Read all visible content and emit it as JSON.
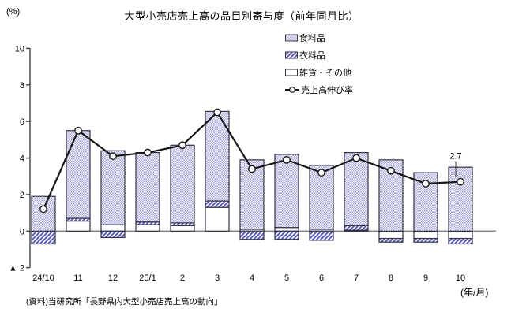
{
  "title": "大型小売店売上高の品目別寄与度（前年同月比）",
  "source_note": "(資料)当研究所「長野県内大型小売店売上高の動向」",
  "chart_data": {
    "type": "bar",
    "subtype": "stacked-bar-with-line",
    "title": "大型小売店売上高の品目別寄与度（前年同月比）",
    "unit_label": "(%)",
    "xaxis_label": "(年/月)",
    "categories": [
      "24/10",
      "11",
      "12",
      "25/1",
      "2",
      "3",
      "4",
      "5",
      "6",
      "7",
      "8",
      "9",
      "10"
    ],
    "bar_series": [
      {
        "name": "食料品",
        "pattern": "dots",
        "values": [
          1.9,
          4.8,
          4.05,
          3.8,
          4.25,
          4.9,
          3.8,
          4.0,
          3.5,
          4.0,
          3.9,
          3.2,
          3.5
        ]
      },
      {
        "name": "衣料品",
        "pattern": "stripes",
        "values": [
          -0.7,
          0.15,
          -0.35,
          0.15,
          0.15,
          0.35,
          -0.45,
          -0.45,
          -0.5,
          0.25,
          -0.2,
          -0.2,
          -0.3
        ]
      },
      {
        "name": "雑貨・その他",
        "pattern": "white",
        "values": [
          0,
          0.55,
          0.35,
          0.35,
          0.3,
          1.3,
          0.1,
          0.2,
          0.1,
          0.05,
          -0.4,
          -0.4,
          -0.4
        ]
      }
    ],
    "line_series": {
      "name": "売上高伸び率",
      "values": [
        1.2,
        5.5,
        4.1,
        4.3,
        4.7,
        6.5,
        3.4,
        3.9,
        3.2,
        4.0,
        3.3,
        2.6,
        2.7
      ]
    },
    "ylim": [
      -2,
      10
    ],
    "yticks": [
      10,
      8,
      6,
      4,
      2,
      0,
      -2
    ],
    "ytick_labels": [
      "10",
      "8",
      "6",
      "4",
      "2",
      "0",
      "▲ 2"
    ],
    "grid": false,
    "legend_position": "upper-right-inside",
    "annotation": {
      "index": 12,
      "text": "2.7"
    },
    "colors": {
      "dots_fill": "#a2a2da",
      "stripes_fill": "#5d5dbd",
      "segment_border": "#333344",
      "line": "#161616",
      "zero_line": "#8a8a8a",
      "axis": "#4d4d4d"
    }
  }
}
